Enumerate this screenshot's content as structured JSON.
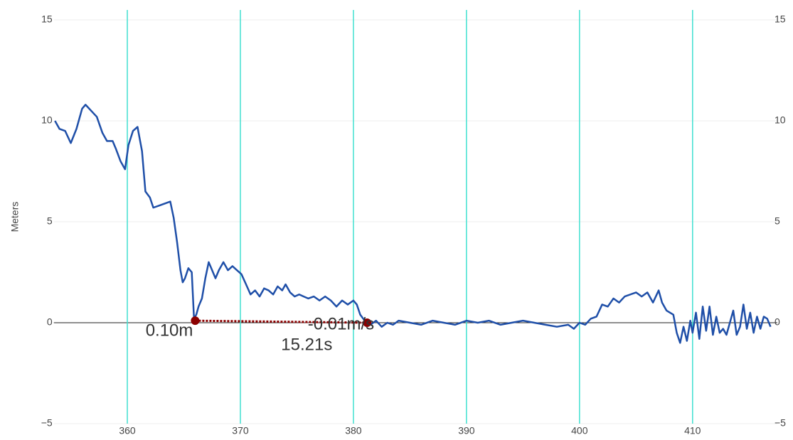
{
  "chart_data": {
    "type": "line",
    "y_label": "Meters",
    "xlim": [
      353.5,
      417.5
    ],
    "xticks": [
      360,
      370,
      380,
      390,
      400,
      410
    ],
    "ylim": [
      -5,
      15
    ],
    "yticks": [
      {
        "value": -5,
        "label": "−5"
      },
      0,
      5,
      10,
      15
    ],
    "y2lim": [
      -5,
      15
    ],
    "y2ticks": [
      {
        "value": -5,
        "label": "−5"
      },
      0,
      5,
      10,
      15
    ],
    "grid": true,
    "x_grid_color": "#40e0d0",
    "series": [
      {
        "color": "#1f4fa8",
        "x": [
          353.6,
          354,
          354.5,
          355,
          355.5,
          356,
          356.3,
          356.8,
          357.3,
          357.8,
          358.2,
          358.7,
          359,
          359.4,
          359.8,
          360.1,
          360.5,
          360.9,
          361.3,
          361.6,
          362,
          362.3,
          362.8,
          363.3,
          363.8,
          364.1,
          364.4,
          364.7,
          364.9,
          365.1,
          365.4,
          365.7,
          365.9,
          366.1,
          366.3,
          366.6,
          366.9,
          367.2,
          367.5,
          367.8,
          368.1,
          368.5,
          368.9,
          369.3,
          369.7,
          370.1,
          370.5,
          370.9,
          371.3,
          371.7,
          372.1,
          372.5,
          372.9,
          373.3,
          373.7,
          374,
          374.4,
          374.8,
          375.2,
          375.6,
          376,
          376.5,
          377,
          377.5,
          378,
          378.5,
          379,
          379.5,
          380,
          380.3,
          380.6,
          381,
          381.5,
          382,
          382.5,
          383,
          383.5,
          384,
          385,
          386,
          387,
          388,
          389,
          390,
          391,
          392,
          393,
          394,
          395,
          396,
          397,
          398,
          399,
          399.5,
          400,
          400.5,
          401,
          401.5,
          402,
          402.5,
          403,
          403.5,
          404,
          404.5,
          405,
          405.5,
          406,
          406.5,
          407,
          407.3,
          407.7,
          408,
          408.3,
          408.6,
          408.9,
          409.2,
          409.5,
          409.8,
          410,
          410.3,
          410.6,
          410.9,
          411.2,
          411.5,
          411.8,
          412.1,
          412.4,
          412.7,
          413,
          413.3,
          413.6,
          413.9,
          414.2,
          414.5,
          414.8,
          415.1,
          415.4,
          415.7,
          416,
          416.3,
          416.6,
          416.9
        ],
        "values": [
          10.0,
          9.6,
          9.5,
          8.9,
          9.6,
          10.6,
          10.8,
          10.5,
          10.2,
          9.4,
          9.0,
          9.0,
          8.6,
          8.0,
          7.6,
          8.8,
          9.5,
          9.7,
          8.5,
          6.5,
          6.2,
          5.7,
          5.8,
          5.9,
          6.0,
          5.2,
          4.0,
          2.6,
          2.0,
          2.2,
          2.7,
          2.5,
          0.2,
          0.4,
          0.8,
          1.2,
          2.2,
          3.0,
          2.6,
          2.2,
          2.6,
          3.0,
          2.6,
          2.8,
          2.6,
          2.4,
          1.9,
          1.4,
          1.6,
          1.3,
          1.7,
          1.6,
          1.4,
          1.8,
          1.6,
          1.9,
          1.5,
          1.3,
          1.4,
          1.3,
          1.2,
          1.3,
          1.1,
          1.3,
          1.1,
          0.8,
          1.1,
          0.9,
          1.1,
          0.9,
          0.4,
          0.1,
          -0.1,
          0.1,
          -0.2,
          0.0,
          -0.1,
          0.1,
          0.0,
          -0.1,
          0.1,
          0.0,
          -0.1,
          0.1,
          0.0,
          0.1,
          -0.1,
          0.0,
          0.1,
          0.0,
          -0.1,
          -0.2,
          -0.1,
          -0.3,
          0.0,
          -0.1,
          0.2,
          0.3,
          0.9,
          0.8,
          1.2,
          1.0,
          1.3,
          1.4,
          1.5,
          1.3,
          1.5,
          1.0,
          1.6,
          1.0,
          0.6,
          0.5,
          0.4,
          -0.5,
          -1.0,
          -0.2,
          -0.9,
          0.1,
          -0.5,
          0.5,
          -0.8,
          0.8,
          -0.4,
          0.8,
          -0.6,
          0.3,
          -0.5,
          -0.3,
          -0.6,
          0.0,
          0.6,
          -0.6,
          -0.2,
          0.9,
          -0.3,
          0.5,
          -0.5,
          0.3,
          -0.3,
          0.3,
          0.2,
          -0.2
        ]
      }
    ],
    "measurement": {
      "color": "#8b0000",
      "x": [
        366.0,
        381.21
      ],
      "y": [
        0.1,
        0.0
      ],
      "labels": [
        "0.10m",
        "-0.01m/s",
        "15.21s"
      ]
    }
  }
}
